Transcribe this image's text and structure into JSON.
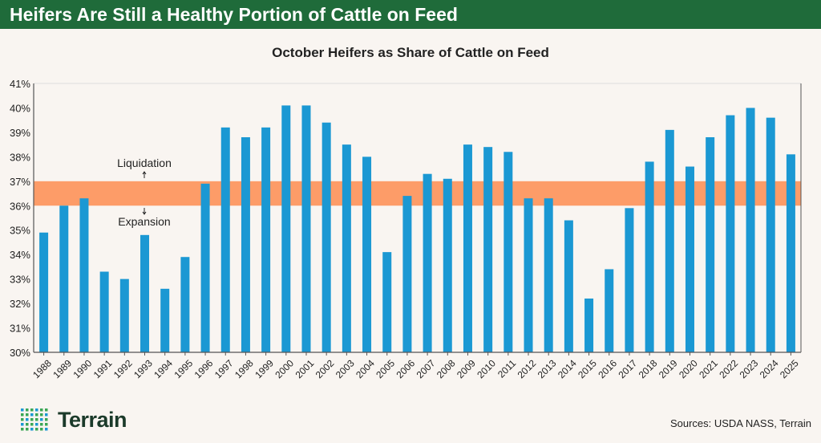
{
  "header": {
    "title": "Heifers Are Still a Healthy Portion of Cattle on Feed"
  },
  "chart_data": {
    "type": "bar",
    "title": "October Heifers as Share of Cattle on Feed",
    "categories": [
      "1988",
      "1989",
      "1990",
      "1991",
      "1992",
      "1993",
      "1994",
      "1995",
      "1996",
      "1997",
      "1998",
      "1999",
      "2000",
      "2001",
      "2002",
      "2003",
      "2004",
      "2005",
      "2006",
      "2007",
      "2008",
      "2009",
      "2010",
      "2011",
      "2012",
      "2013",
      "2014",
      "2015",
      "2016",
      "2017",
      "2018",
      "2019",
      "2020",
      "2021",
      "2022",
      "2023",
      "2024",
      "2025"
    ],
    "values": [
      34.9,
      36.0,
      36.3,
      33.3,
      33.0,
      34.8,
      32.6,
      33.9,
      36.9,
      39.2,
      38.8,
      39.2,
      40.1,
      40.1,
      39.4,
      38.5,
      38.0,
      34.1,
      36.4,
      37.3,
      37.1,
      38.5,
      38.4,
      38.2,
      36.3,
      36.3,
      35.4,
      32.2,
      33.4,
      35.9,
      37.8,
      39.1,
      37.6,
      38.8,
      39.7,
      40.0,
      39.6,
      38.1
    ],
    "ylim": [
      30,
      41
    ],
    "yticks": [
      "30%",
      "31%",
      "32%",
      "33%",
      "34%",
      "35%",
      "36%",
      "37%",
      "38%",
      "39%",
      "40%",
      "41%"
    ],
    "band": {
      "from": 36,
      "to": 37,
      "color": "#fd9c68"
    },
    "annotations": {
      "above": "Liquidation",
      "below": "Expansion"
    },
    "bar_color": "#1b98d3",
    "grid": false
  },
  "footer": {
    "brand": "Terrain",
    "sources": "Sources: USDA NASS, Terrain"
  }
}
